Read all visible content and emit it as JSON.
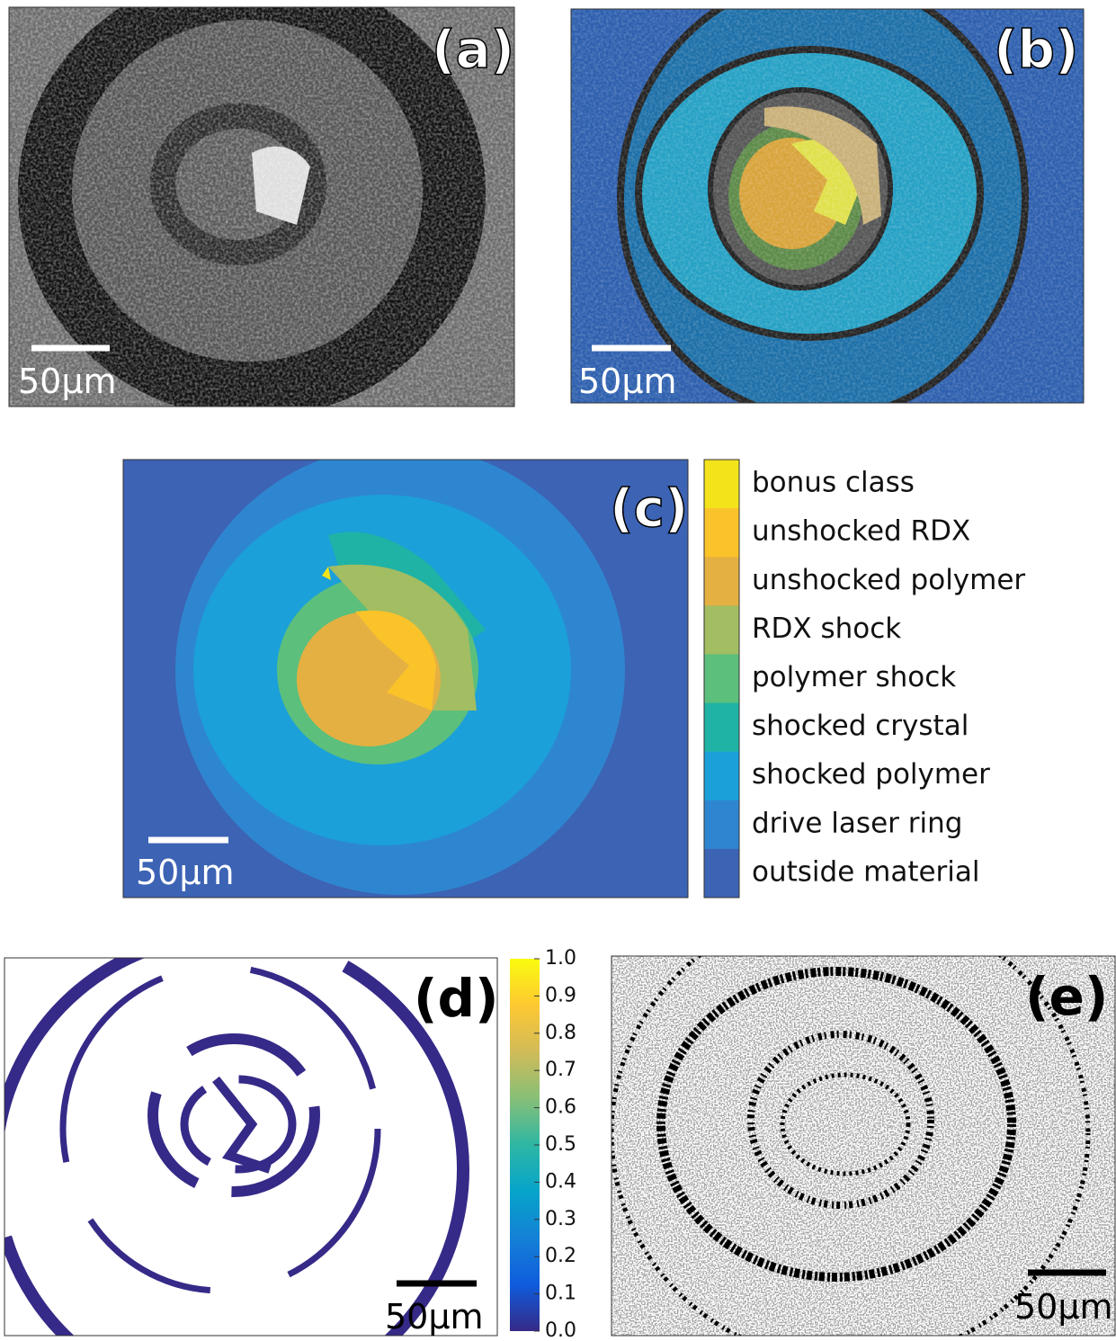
{
  "panels": [
    {
      "label": "(a)",
      "scale_bar": "50μm"
    },
    {
      "label": "(b)",
      "scale_bar": "50μm"
    },
    {
      "label": "(c)",
      "scale_bar": "50μm",
      "legend": [
        {
          "name": "bonus class",
          "color": "#f2e31b"
        },
        {
          "name": "unshocked RDX",
          "color": "#fbc32a"
        },
        {
          "name": "unshocked polymer",
          "color": "#e5b042"
        },
        {
          "name": "RDX shock",
          "color": "#a3bd62"
        },
        {
          "name": "polymer shock",
          "color": "#5cbf7c"
        },
        {
          "name": "shocked crystal",
          "color": "#1fb3a6"
        },
        {
          "name": "shocked polymer",
          "color": "#1ba0d9"
        },
        {
          "name": "drive laser ring",
          "color": "#2f86d0"
        },
        {
          "name": "outside material",
          "color": "#3c63b4"
        }
      ]
    },
    {
      "label": "(d)",
      "scale_bar": "50μm",
      "colorbar": {
        "lim": [
          0,
          1
        ],
        "colors": [
          "#352a87",
          "#0f5cdd",
          "#1481d6",
          "#06a4ca",
          "#2eb7a4",
          "#87bf77",
          "#d1bb59",
          "#fec832",
          "#f9fb0e"
        ],
        "ticks": [
          {
            "value": 0,
            "label": "0.0"
          },
          {
            "value": 0.1,
            "label": "0.1"
          },
          {
            "value": 0.2,
            "label": "0.2"
          },
          {
            "value": 0.3,
            "label": "0.3"
          },
          {
            "value": 0.4,
            "label": "0.4"
          },
          {
            "value": 0.5,
            "label": "0.5"
          },
          {
            "value": 0.6,
            "label": "0.6"
          },
          {
            "value": 0.7,
            "label": "0.7"
          },
          {
            "value": 0.8,
            "label": "0.8"
          },
          {
            "value": 0.9,
            "label": "0.9"
          },
          {
            "value": 1,
            "label": "1.0"
          }
        ]
      }
    },
    {
      "label": "(e)",
      "scale_bar": "50μm"
    }
  ]
}
